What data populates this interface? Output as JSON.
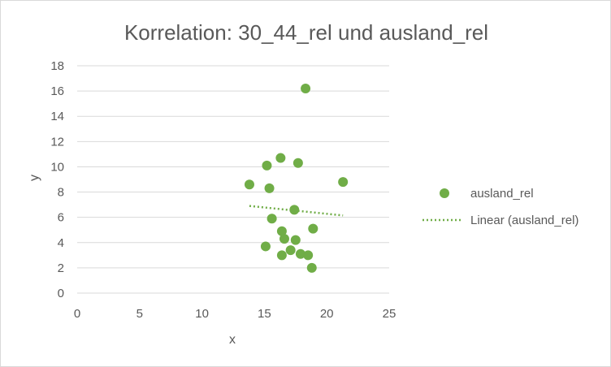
{
  "chart_data": {
    "type": "scatter",
    "title": "Korrelation: 30_44_rel und ausland_rel",
    "xlabel": "x",
    "ylabel": "y",
    "xlim": [
      0,
      25
    ],
    "ylim": [
      0,
      18
    ],
    "xticks": [
      0,
      5,
      10,
      15,
      20,
      25
    ],
    "yticks": [
      0,
      2,
      4,
      6,
      8,
      10,
      12,
      14,
      16,
      18
    ],
    "grid": "horizontal",
    "legend_position": "right",
    "series": [
      {
        "name": "ausland_rel",
        "color": "#70ad47",
        "points": [
          {
            "x": 18.3,
            "y": 16.2
          },
          {
            "x": 16.3,
            "y": 10.7
          },
          {
            "x": 15.2,
            "y": 10.1
          },
          {
            "x": 17.7,
            "y": 10.3
          },
          {
            "x": 21.3,
            "y": 8.8
          },
          {
            "x": 13.8,
            "y": 8.6
          },
          {
            "x": 15.4,
            "y": 8.3
          },
          {
            "x": 17.4,
            "y": 6.6
          },
          {
            "x": 15.6,
            "y": 5.9
          },
          {
            "x": 18.9,
            "y": 5.1
          },
          {
            "x": 16.4,
            "y": 4.9
          },
          {
            "x": 16.6,
            "y": 4.3
          },
          {
            "x": 17.5,
            "y": 4.2
          },
          {
            "x": 15.1,
            "y": 3.7
          },
          {
            "x": 17.1,
            "y": 3.4
          },
          {
            "x": 17.9,
            "y": 3.1
          },
          {
            "x": 18.5,
            "y": 3.0
          },
          {
            "x": 16.4,
            "y": 3.0
          },
          {
            "x": 18.8,
            "y": 2.0
          }
        ]
      }
    ],
    "trendline": {
      "name": "Linear (ausland_rel)",
      "type": "linear",
      "color": "#70ad47",
      "style": "dotted",
      "from": {
        "x": 13.8,
        "y": 6.9
      },
      "to": {
        "x": 21.3,
        "y": 6.15
      }
    }
  }
}
